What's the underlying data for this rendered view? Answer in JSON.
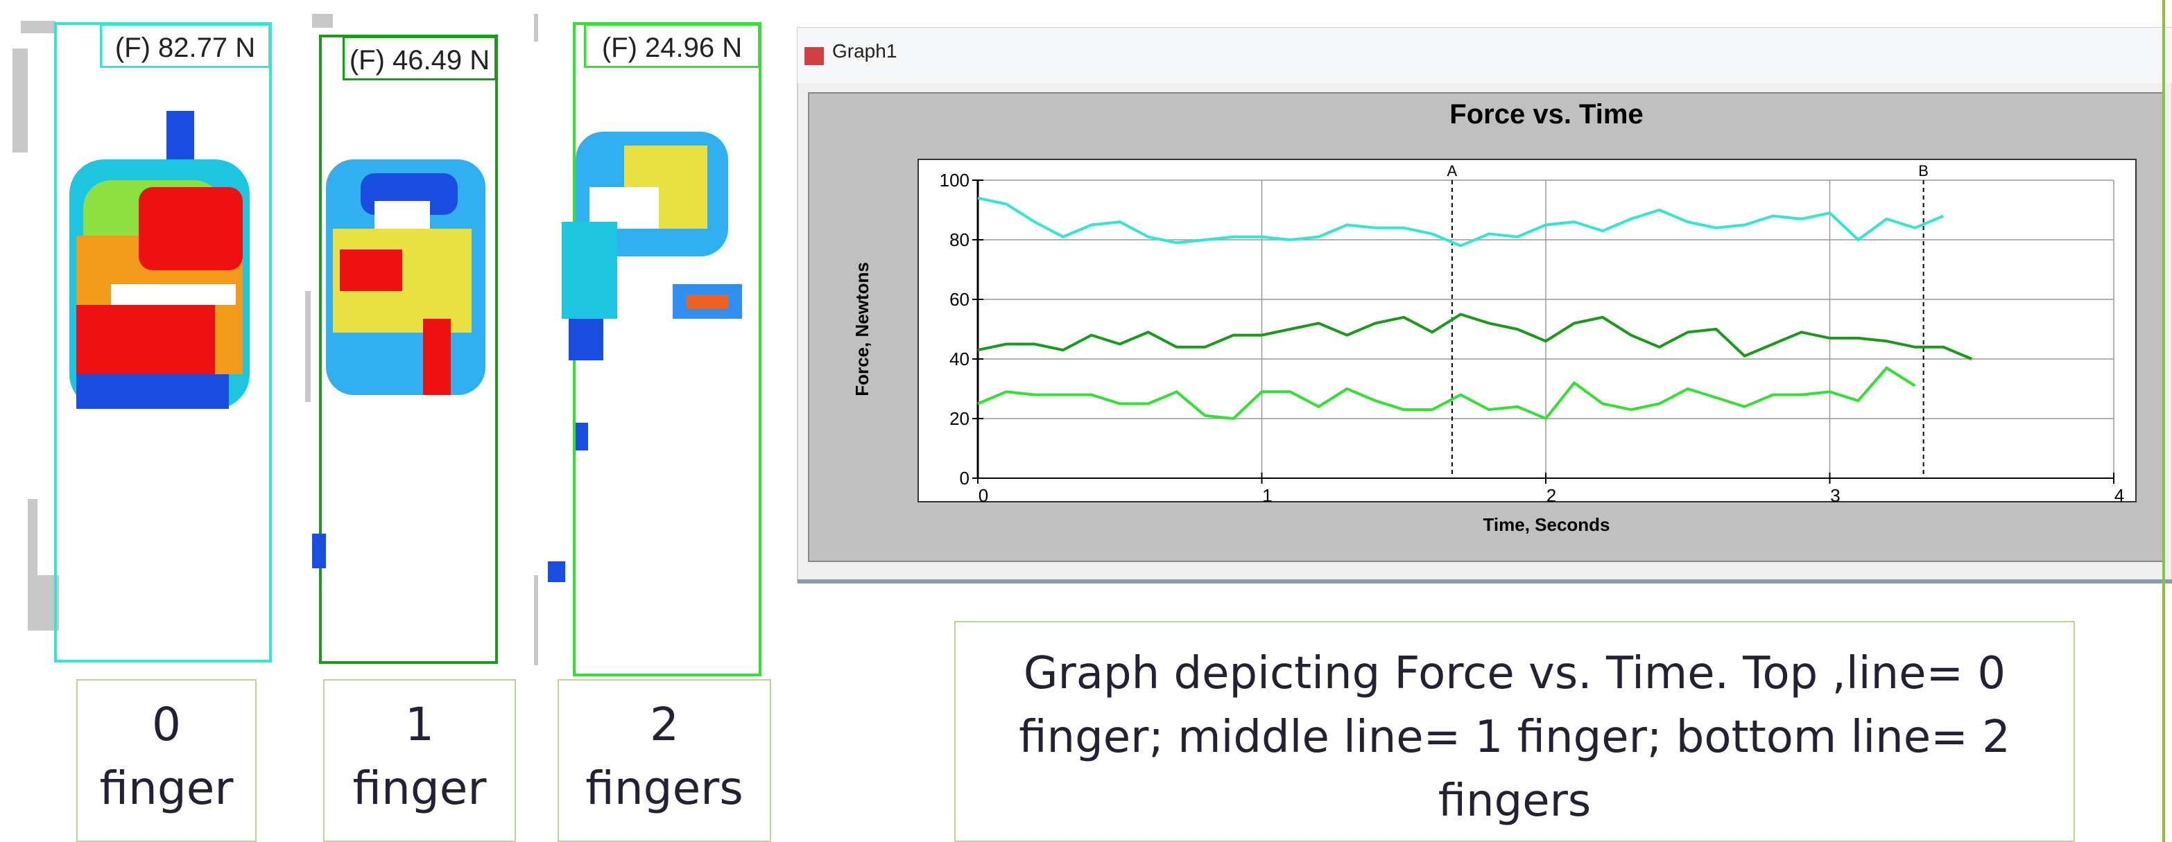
{
  "panels": [
    {
      "force": "(F) 82.77 N",
      "label": "0\nfinger"
    },
    {
      "force": "(F) 46.49 N",
      "label": "1\nfinger"
    },
    {
      "force": "(F) 24.96 N",
      "label": "2\nfingers"
    }
  ],
  "window": {
    "title": "Graph1"
  },
  "caption": "Graph depicting Force vs. Time. Top ,line= 0 finger; middle line= 1 finger; bottom line= 2 fingers",
  "chart_data": {
    "type": "line",
    "title": "Force vs. Time",
    "x_label": "Time, Seconds",
    "y_label": "Force, Newtons",
    "x": [
      0,
      0.1,
      0.2,
      0.3,
      0.4,
      0.5,
      0.6,
      0.7,
      0.8,
      0.9,
      1,
      1.1,
      1.2,
      1.3,
      1.4,
      1.5,
      1.6,
      1.7,
      1.8,
      1.9,
      2,
      2.1,
      2.2,
      2.3,
      2.4,
      2.5,
      2.6,
      2.7,
      2.8,
      2.9,
      3,
      3.1,
      3.2,
      3.3,
      3.4,
      3.5
    ],
    "series": [
      {
        "color": "#33e6d0",
        "values": [
          94,
          92,
          86,
          81,
          85,
          86,
          81,
          79,
          80,
          81,
          81,
          80,
          81,
          85,
          84,
          84,
          82,
          78,
          82,
          81,
          85,
          86,
          83,
          87,
          90,
          86,
          84,
          85,
          88,
          87,
          89,
          80,
          87,
          84,
          88,
          null
        ]
      },
      {
        "color": "#1a9a1a",
        "values": [
          43,
          45,
          45,
          43,
          48,
          45,
          49,
          44,
          44,
          48,
          48,
          50,
          52,
          48,
          52,
          54,
          49,
          55,
          52,
          50,
          46,
          52,
          54,
          48,
          44,
          49,
          50,
          41,
          45,
          49,
          47,
          47,
          46,
          44,
          44,
          40
        ]
      },
      {
        "color": "#33e033",
        "values": [
          25,
          29,
          28,
          28,
          28,
          25,
          25,
          29,
          21,
          20,
          29,
          29,
          24,
          30,
          26,
          23,
          23,
          28,
          23,
          24,
          20,
          32,
          25,
          23,
          25,
          30,
          27,
          24,
          28,
          28,
          29,
          26,
          37,
          31,
          null,
          null
        ]
      }
    ],
    "markers": [
      {
        "label": "A",
        "x": 1.67
      },
      {
        "label": "B",
        "x": 3.33
      }
    ],
    "xlim": [
      0,
      4
    ],
    "xticks": [
      0,
      1,
      2,
      3,
      4
    ],
    "ylim": [
      0,
      100
    ],
    "yticks": [
      0,
      20,
      40,
      60,
      80,
      100
    ],
    "grid": true
  }
}
